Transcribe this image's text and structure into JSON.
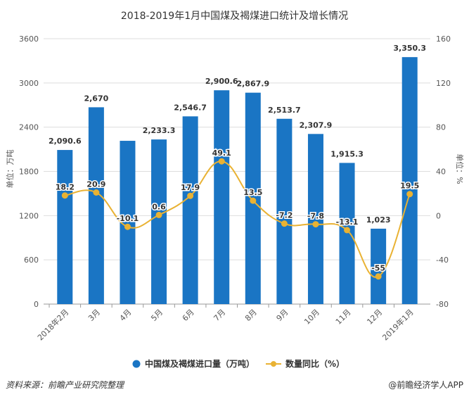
{
  "chart_data": {
    "type": "bar+line",
    "title": "2018-2019年1月中国煤及褐煤进口统计及增长情况",
    "categories": [
      "2018年2月",
      "3月",
      "4月",
      "5月",
      "6月",
      "7月",
      "8月",
      "9月",
      "10月",
      "11月",
      "12月",
      "2019年1月"
    ],
    "series": [
      {
        "name": "中国煤及褐煤进口量（万吨）",
        "type": "bar",
        "axis": "left",
        "color": "#1a75c4",
        "values": [
          2090.6,
          2670,
          2215,
          2233.3,
          2546.7,
          2900.6,
          2867.9,
          2513.7,
          2307.9,
          1915.3,
          1023,
          3350.3
        ],
        "labels": [
          "2,090.6",
          "2,670",
          null,
          "2,233.3",
          "2,546.7",
          "2,900.6",
          "2,867.9",
          "2,513.7",
          "2,307.9",
          "1,915.3",
          "1,023",
          "3,350.3"
        ]
      },
      {
        "name": "数量同比（%）",
        "type": "line",
        "axis": "right",
        "color": "#e9b233",
        "smooth": true,
        "values": [
          18.2,
          20.9,
          -10.1,
          0.6,
          17.9,
          49.1,
          13.5,
          -7.2,
          -7.8,
          -13.1,
          -55,
          19.5
        ],
        "labels": [
          "18.2",
          "20.9",
          "-10.1",
          "0.6",
          "17.9",
          "49.1",
          "13.5",
          "-7.2",
          "-7.8",
          "-13.1",
          "-55",
          "19.5"
        ]
      }
    ],
    "ylabel_left": "单位：万吨",
    "ylabel_right": "单位：%",
    "ylim_left": [
      0,
      3600
    ],
    "ylim_right": [
      -80,
      160
    ],
    "yticks_left": [
      "0",
      "600",
      "1200",
      "1800",
      "2400",
      "3000",
      "3600"
    ],
    "yticks_right": [
      "-80",
      "-40",
      "0",
      "40",
      "80",
      "120",
      "160"
    ],
    "grid": true,
    "legend_placement": "bottom"
  },
  "footer": {
    "source": "资料来源：前瞻产业研究院整理",
    "credit": "@前瞻经济学人APP"
  }
}
